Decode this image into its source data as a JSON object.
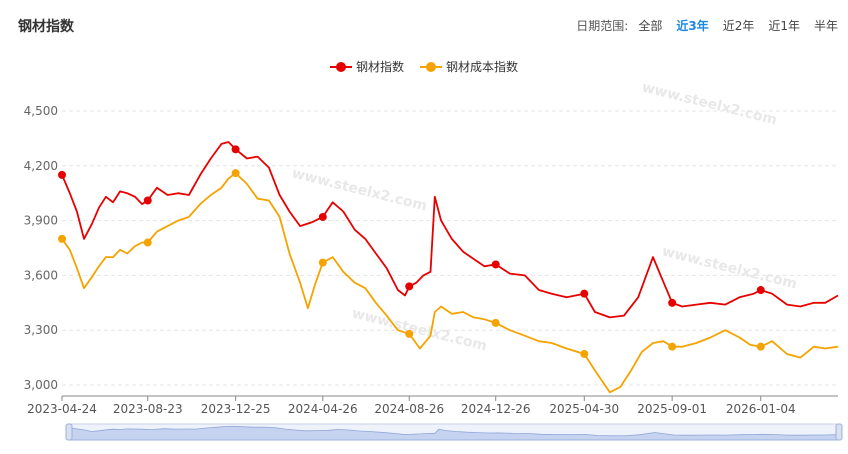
{
  "header": {
    "title": "钢材指数",
    "range_label": "日期范围:",
    "range_options": [
      "全部",
      "近3年",
      "近2年",
      "近1年",
      "半年"
    ],
    "active_range": "近3年"
  },
  "watermark": "www.steelx2.com",
  "colors": {
    "steel": "#e60000",
    "cost": "#f5a300",
    "grid": "#e6e6e6",
    "axis": "#888888",
    "active": "#1e88e5"
  },
  "chart_data": {
    "type": "line",
    "x_ticks": [
      "2023-04-24",
      "2023-08-23",
      "2023-12-25",
      "2024-04-26",
      "2024-08-26",
      "2024-12-26",
      "2025-04-30",
      "2025-09-01",
      "2026-01-04"
    ],
    "y_ticks": [
      3000,
      3300,
      3600,
      3900,
      4200,
      4500
    ],
    "ylim": [
      2940,
      4560
    ],
    "xlim": [
      "2023-04-24",
      "2026-04-23"
    ],
    "grid": true,
    "legend_position": "top-center",
    "series": [
      {
        "name": "钢材指数",
        "color": "#e60000",
        "points": [
          [
            "2023-04-24",
            4150
          ],
          [
            "2023-05-05",
            4050
          ],
          [
            "2023-05-15",
            3950
          ],
          [
            "2023-05-25",
            3800
          ],
          [
            "2023-06-05",
            3880
          ],
          [
            "2023-06-15",
            3970
          ],
          [
            "2023-06-25",
            4030
          ],
          [
            "2023-07-05",
            4000
          ],
          [
            "2023-07-15",
            4060
          ],
          [
            "2023-07-25",
            4050
          ],
          [
            "2023-08-05",
            4030
          ],
          [
            "2023-08-15",
            3990
          ],
          [
            "2023-08-23",
            4010
          ],
          [
            "2023-09-05",
            4080
          ],
          [
            "2023-09-20",
            4040
          ],
          [
            "2023-10-05",
            4050
          ],
          [
            "2023-10-20",
            4040
          ],
          [
            "2023-11-05",
            4150
          ],
          [
            "2023-11-20",
            4240
          ],
          [
            "2023-12-05",
            4320
          ],
          [
            "2023-12-15",
            4330
          ],
          [
            "2023-12-25",
            4290
          ],
          [
            "2024-01-10",
            4240
          ],
          [
            "2024-01-25",
            4250
          ],
          [
            "2024-02-10",
            4190
          ],
          [
            "2024-02-25",
            4040
          ],
          [
            "2024-03-10",
            3950
          ],
          [
            "2024-03-25",
            3870
          ],
          [
            "2024-04-10",
            3890
          ],
          [
            "2024-04-26",
            3920
          ],
          [
            "2024-05-10",
            4000
          ],
          [
            "2024-05-25",
            3950
          ],
          [
            "2024-06-10",
            3850
          ],
          [
            "2024-06-25",
            3800
          ],
          [
            "2024-07-10",
            3720
          ],
          [
            "2024-07-25",
            3640
          ],
          [
            "2024-08-10",
            3520
          ],
          [
            "2024-08-20",
            3490
          ],
          [
            "2024-08-26",
            3540
          ],
          [
            "2024-09-05",
            3560
          ],
          [
            "2024-09-15",
            3600
          ],
          [
            "2024-09-25",
            3620
          ],
          [
            "2024-10-01",
            4030
          ],
          [
            "2024-10-10",
            3900
          ],
          [
            "2024-10-25",
            3800
          ],
          [
            "2024-11-10",
            3730
          ],
          [
            "2024-11-25",
            3690
          ],
          [
            "2024-12-10",
            3650
          ],
          [
            "2024-12-26",
            3660
          ],
          [
            "2025-01-15",
            3610
          ],
          [
            "2025-02-05",
            3600
          ],
          [
            "2025-02-25",
            3520
          ],
          [
            "2025-03-15",
            3500
          ],
          [
            "2025-04-05",
            3480
          ],
          [
            "2025-04-30",
            3500
          ],
          [
            "2025-05-15",
            3400
          ],
          [
            "2025-06-05",
            3370
          ],
          [
            "2025-06-25",
            3380
          ],
          [
            "2025-07-15",
            3480
          ],
          [
            "2025-08-05",
            3700
          ],
          [
            "2025-08-20",
            3560
          ],
          [
            "2025-09-01",
            3450
          ],
          [
            "2025-09-15",
            3430
          ],
          [
            "2025-10-05",
            3440
          ],
          [
            "2025-10-25",
            3450
          ],
          [
            "2025-11-15",
            3440
          ],
          [
            "2025-12-05",
            3480
          ],
          [
            "2025-12-25",
            3500
          ],
          [
            "2026-01-04",
            3520
          ],
          [
            "2026-01-20",
            3500
          ],
          [
            "2026-02-10",
            3440
          ],
          [
            "2026-03-01",
            3430
          ],
          [
            "2026-03-20",
            3450
          ],
          [
            "2026-04-05",
            3450
          ],
          [
            "2026-04-23",
            3490
          ]
        ],
        "markers": [
          [
            "2023-04-24",
            4150
          ],
          [
            "2023-08-23",
            4010
          ],
          [
            "2023-12-25",
            4290
          ],
          [
            "2024-04-26",
            3920
          ],
          [
            "2024-08-26",
            3540
          ],
          [
            "2024-12-26",
            3660
          ],
          [
            "2025-04-30",
            3500
          ],
          [
            "2025-09-01",
            3450
          ],
          [
            "2026-01-04",
            3520
          ]
        ]
      },
      {
        "name": "钢材成本指数",
        "color": "#f5a300",
        "points": [
          [
            "2023-04-24",
            3800
          ],
          [
            "2023-05-05",
            3740
          ],
          [
            "2023-05-15",
            3640
          ],
          [
            "2023-05-25",
            3530
          ],
          [
            "2023-06-05",
            3590
          ],
          [
            "2023-06-15",
            3650
          ],
          [
            "2023-06-25",
            3700
          ],
          [
            "2023-07-05",
            3700
          ],
          [
            "2023-07-15",
            3740
          ],
          [
            "2023-07-25",
            3720
          ],
          [
            "2023-08-05",
            3760
          ],
          [
            "2023-08-15",
            3780
          ],
          [
            "2023-08-23",
            3780
          ],
          [
            "2023-09-05",
            3840
          ],
          [
            "2023-09-20",
            3870
          ],
          [
            "2023-10-05",
            3900
          ],
          [
            "2023-10-20",
            3920
          ],
          [
            "2023-11-05",
            3990
          ],
          [
            "2023-11-20",
            4040
          ],
          [
            "2023-12-05",
            4080
          ],
          [
            "2023-12-15",
            4130
          ],
          [
            "2023-12-25",
            4160
          ],
          [
            "2024-01-10",
            4100
          ],
          [
            "2024-01-25",
            4020
          ],
          [
            "2024-02-10",
            4010
          ],
          [
            "2024-02-25",
            3920
          ],
          [
            "2024-03-10",
            3720
          ],
          [
            "2024-03-25",
            3560
          ],
          [
            "2024-04-05",
            3420
          ],
          [
            "2024-04-15",
            3550
          ],
          [
            "2024-04-26",
            3670
          ],
          [
            "2024-05-10",
            3700
          ],
          [
            "2024-05-25",
            3620
          ],
          [
            "2024-06-10",
            3560
          ],
          [
            "2024-06-25",
            3530
          ],
          [
            "2024-07-10",
            3450
          ],
          [
            "2024-07-25",
            3380
          ],
          [
            "2024-08-10",
            3300
          ],
          [
            "2024-08-26",
            3280
          ],
          [
            "2024-09-10",
            3200
          ],
          [
            "2024-09-25",
            3270
          ],
          [
            "2024-10-01",
            3400
          ],
          [
            "2024-10-10",
            3430
          ],
          [
            "2024-10-25",
            3390
          ],
          [
            "2024-11-10",
            3400
          ],
          [
            "2024-11-25",
            3370
          ],
          [
            "2024-12-10",
            3360
          ],
          [
            "2024-12-26",
            3340
          ],
          [
            "2025-01-15",
            3300
          ],
          [
            "2025-02-05",
            3270
          ],
          [
            "2025-02-25",
            3240
          ],
          [
            "2025-03-15",
            3230
          ],
          [
            "2025-04-05",
            3200
          ],
          [
            "2025-04-30",
            3170
          ],
          [
            "2025-05-15",
            3080
          ],
          [
            "2025-06-05",
            2960
          ],
          [
            "2025-06-20",
            2990
          ],
          [
            "2025-07-05",
            3080
          ],
          [
            "2025-07-20",
            3180
          ],
          [
            "2025-08-05",
            3230
          ],
          [
            "2025-08-20",
            3240
          ],
          [
            "2025-09-01",
            3210
          ],
          [
            "2025-09-15",
            3210
          ],
          [
            "2025-10-05",
            3230
          ],
          [
            "2025-10-25",
            3260
          ],
          [
            "2025-11-15",
            3300
          ],
          [
            "2025-12-05",
            3260
          ],
          [
            "2025-12-20",
            3220
          ],
          [
            "2026-01-04",
            3210
          ],
          [
            "2026-01-20",
            3240
          ],
          [
            "2026-02-10",
            3170
          ],
          [
            "2026-03-01",
            3150
          ],
          [
            "2026-03-20",
            3210
          ],
          [
            "2026-04-05",
            3200
          ],
          [
            "2026-04-23",
            3210
          ]
        ],
        "markers": [
          [
            "2023-04-24",
            3800
          ],
          [
            "2023-08-23",
            3780
          ],
          [
            "2023-12-25",
            4160
          ],
          [
            "2024-04-26",
            3670
          ],
          [
            "2024-08-26",
            3280
          ],
          [
            "2024-12-26",
            3340
          ],
          [
            "2025-04-30",
            3170
          ],
          [
            "2025-09-01",
            3210
          ],
          [
            "2026-01-04",
            3210
          ]
        ]
      }
    ]
  }
}
